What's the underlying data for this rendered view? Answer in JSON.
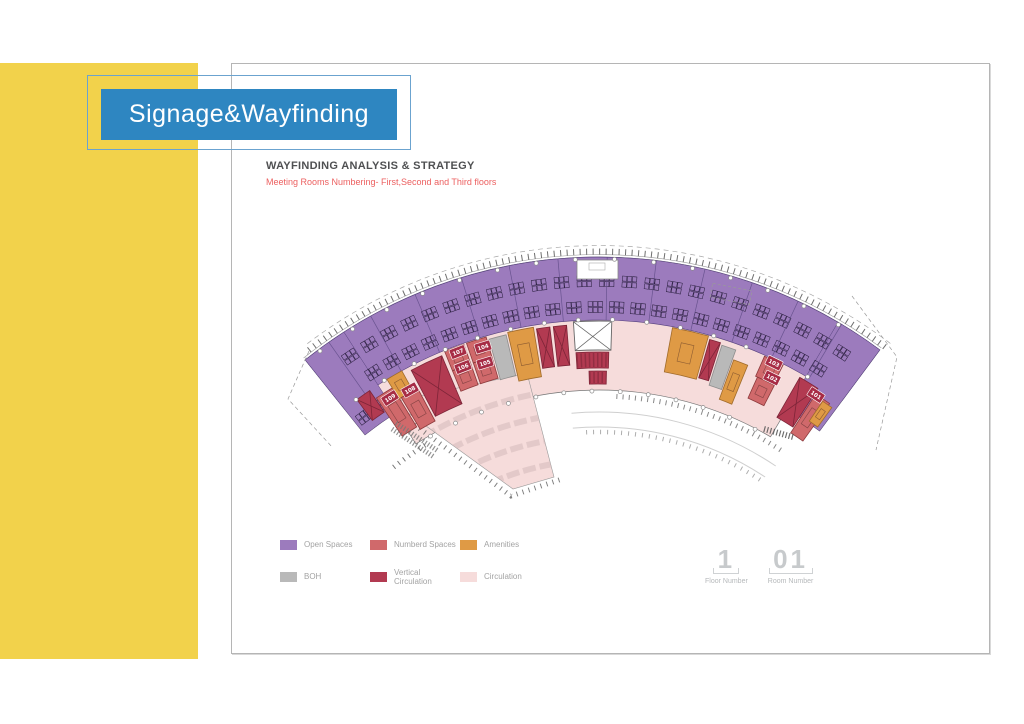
{
  "slide_title": {
    "label": "Signage&Wayfinding"
  },
  "section": {
    "heading": "WAYFINDING ANALYSIS & STRATEGY",
    "subheading": "Meeting Rooms Numbering- First,Second and Third floors"
  },
  "legend": {
    "items": [
      {
        "label": "Open Spaces",
        "color": "#9c7bbd"
      },
      {
        "label": "Numberd Spaces",
        "color": "#d0696b"
      },
      {
        "label": "Amenities",
        "color": "#df9a45"
      },
      {
        "label": "BOH",
        "color": "#b9b9b9"
      },
      {
        "label": "Vertical Circulation",
        "color": "#b23a51"
      },
      {
        "label": "Circulation",
        "color": "#f6dcdb"
      }
    ]
  },
  "numbering_key": {
    "floor": {
      "value": "1",
      "label": "Floor Number"
    },
    "room": {
      "value": "01",
      "label": "Room Number"
    }
  },
  "plan": {
    "room_tags": [
      "109",
      "108",
      "107",
      "106",
      "104",
      "105",
      "103",
      "102",
      "101"
    ]
  },
  "colors": {
    "accent_yellow": "#f2d24b",
    "accent_blue": "#2e86c1",
    "open_spaces": "#9c7bbd",
    "numbered_spaces": "#d0696b",
    "amenities": "#df9a45",
    "boh": "#b9b9b9",
    "vertical_circulation": "#b23a51",
    "circulation": "#f6dcdb",
    "room_tag": "#a72c45"
  }
}
